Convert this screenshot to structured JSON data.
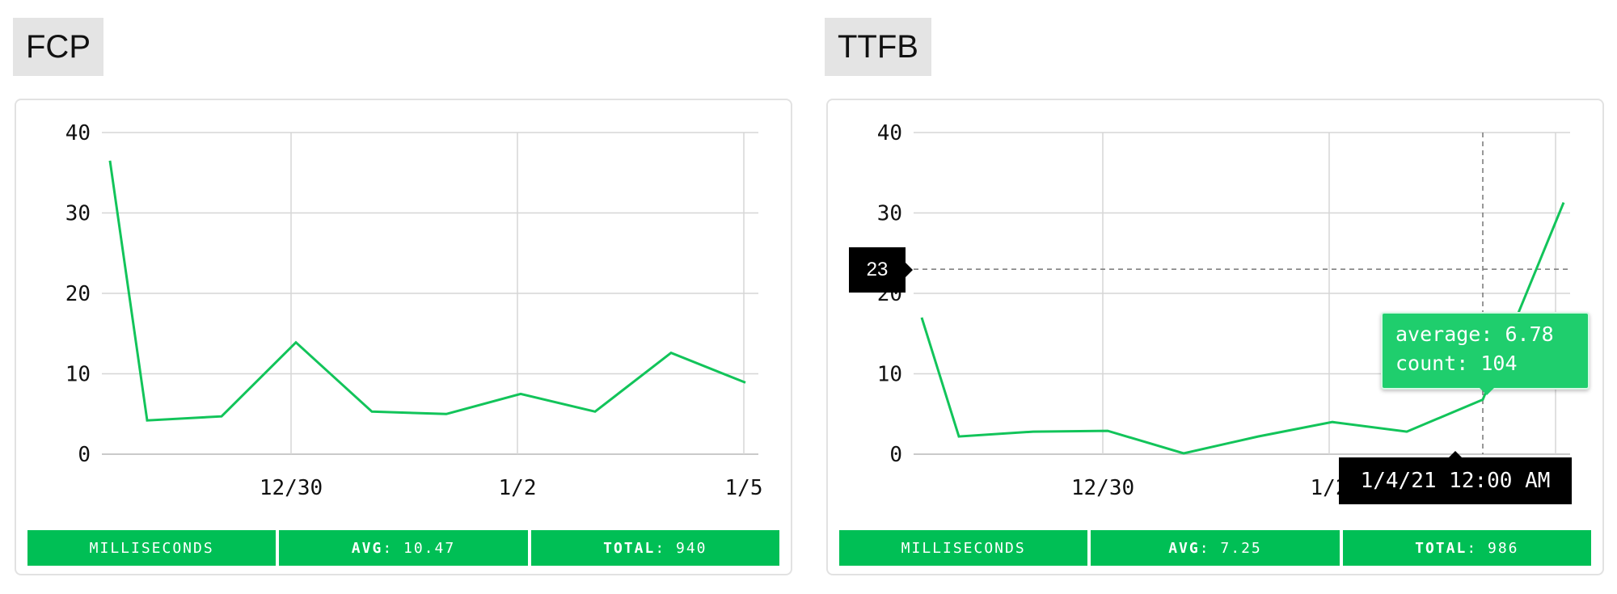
{
  "panels": [
    {
      "title": "FCP",
      "stats": {
        "unit": "MILLISECONDS",
        "avg_label": "AVG",
        "avg_value": "10.47",
        "total_label": "TOTAL",
        "total_value": "940"
      }
    },
    {
      "title": "TTFB",
      "stats": {
        "unit": "MILLISECONDS",
        "avg_label": "AVG",
        "avg_value": "7.25",
        "total_label": "TOTAL",
        "total_value": "986"
      },
      "crosshair": {
        "y_value_label": "23",
        "x_value_label": "1/4/21 12:00 AM",
        "tooltip_average": "average: 6.78",
        "tooltip_count": "count: 104"
      }
    }
  ],
  "colors": {
    "line": "#12c45a",
    "stat_bg": "#00bf55",
    "grid": "#d6d6d6",
    "tooltip_bg": "#1fce6d"
  },
  "chart_data": [
    {
      "type": "line",
      "title": "FCP",
      "x_tick_labels": [
        "12/30",
        "1/2",
        "1/5"
      ],
      "y_ticks": [
        0,
        10,
        20,
        30,
        40
      ],
      "ylim": [
        0,
        40
      ],
      "x": [
        "12/28",
        "12/28 12:00",
        "12/29 12:00",
        "12/30 12:00",
        "12/31 12:00",
        "1/1 12:00",
        "1/2 12:00",
        "1/3 12:00",
        "1/4 12:00",
        "1/5 12:00"
      ],
      "values": [
        36.5,
        4.2,
        4.7,
        13.9,
        5.3,
        5.0,
        7.5,
        5.3,
        12.6,
        8.9
      ],
      "grid": true
    },
    {
      "type": "line",
      "title": "TTFB",
      "x_tick_labels": [
        "12/30",
        "1/2"
      ],
      "y_ticks": [
        0,
        10,
        20,
        30,
        40
      ],
      "ylim": [
        0,
        40
      ],
      "x": [
        "12/28",
        "12/28 12:00",
        "12/29 12:00",
        "12/30 12:00",
        "12/31 12:00",
        "1/1 12:00",
        "1/2 12:00",
        "1/3 12:00",
        "1/4 12:00",
        "1/5"
      ],
      "values": [
        17.0,
        2.2,
        2.8,
        2.9,
        0.1,
        2.2,
        4.0,
        2.8,
        6.78,
        31.3
      ],
      "grid": true
    }
  ]
}
